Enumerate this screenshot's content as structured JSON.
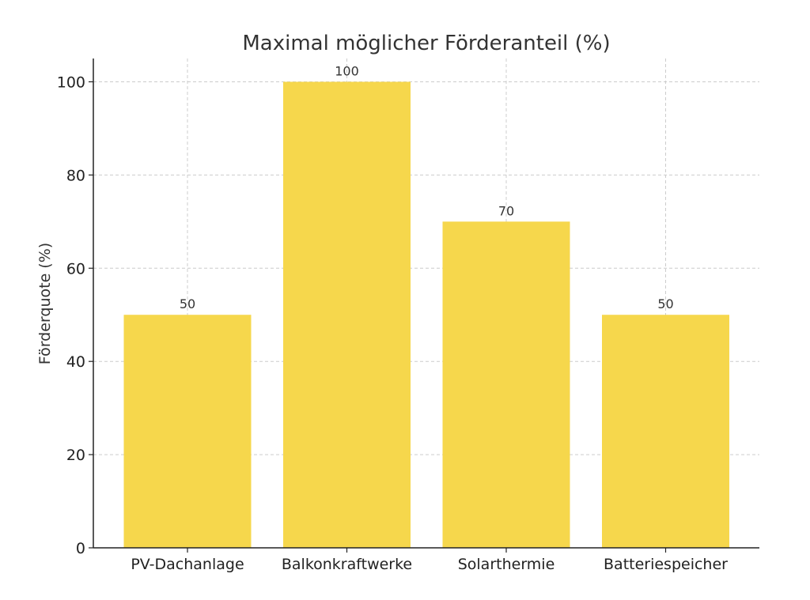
{
  "chart_data": {
    "type": "bar",
    "title": "Maximal möglicher Förderanteil (%)",
    "xlabel": "",
    "ylabel": "Förderquote (%)",
    "categories": [
      "PV-Dachanlage",
      "Balkonkraftwerke",
      "Solarthermie",
      "Batteriespeicher"
    ],
    "values": [
      50,
      100,
      70,
      50
    ],
    "value_labels": [
      "50",
      "100",
      "70",
      "50"
    ],
    "ylim": [
      0,
      105
    ],
    "yticks": [
      0,
      20,
      40,
      60,
      80,
      100
    ],
    "grid": true,
    "colors": {
      "bar": "#F6D74C"
    }
  }
}
